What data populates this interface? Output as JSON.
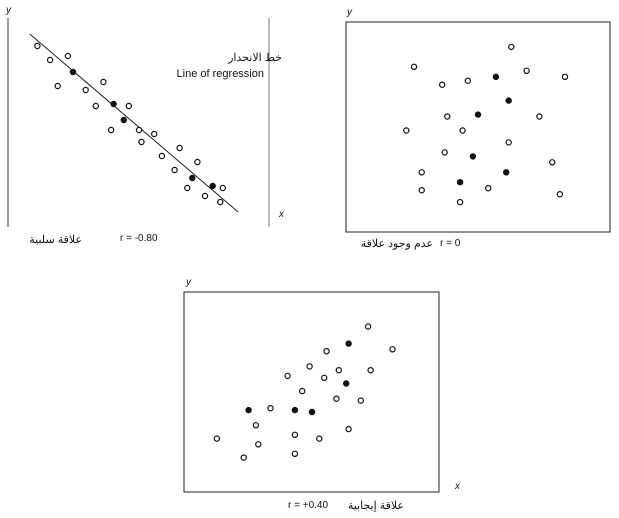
{
  "chart_data": [
    {
      "type": "scatter",
      "panel": "negative",
      "xlabel": "x",
      "ylabel": "y",
      "caption_r": "r = -0.80",
      "caption_ar": "علاقة سلبية",
      "annotation_ar": "خط الانحدار",
      "annotation_en": "Line of regression",
      "has_regression_line": true,
      "xlim": [
        0,
        10
      ],
      "ylim": [
        0,
        10
      ],
      "points": [
        {
          "x": 1.0,
          "y": 9.0,
          "filled": false
        },
        {
          "x": 1.5,
          "y": 8.3,
          "filled": false
        },
        {
          "x": 2.2,
          "y": 8.5,
          "filled": false
        },
        {
          "x": 2.4,
          "y": 7.7,
          "filled": true
        },
        {
          "x": 1.8,
          "y": 7.0,
          "filled": false
        },
        {
          "x": 2.9,
          "y": 6.8,
          "filled": false
        },
        {
          "x": 3.6,
          "y": 7.2,
          "filled": false
        },
        {
          "x": 3.3,
          "y": 6.0,
          "filled": false
        },
        {
          "x": 4.0,
          "y": 6.1,
          "filled": true
        },
        {
          "x": 4.6,
          "y": 6.0,
          "filled": false
        },
        {
          "x": 4.4,
          "y": 5.3,
          "filled": true
        },
        {
          "x": 3.9,
          "y": 4.8,
          "filled": false
        },
        {
          "x": 5.0,
          "y": 4.8,
          "filled": false
        },
        {
          "x": 5.6,
          "y": 4.6,
          "filled": false
        },
        {
          "x": 5.1,
          "y": 4.2,
          "filled": false
        },
        {
          "x": 5.9,
          "y": 3.5,
          "filled": false
        },
        {
          "x": 6.6,
          "y": 3.9,
          "filled": false
        },
        {
          "x": 7.3,
          "y": 3.2,
          "filled": false
        },
        {
          "x": 6.4,
          "y": 2.8,
          "filled": false
        },
        {
          "x": 7.1,
          "y": 2.4,
          "filled": true
        },
        {
          "x": 7.9,
          "y": 2.0,
          "filled": true
        },
        {
          "x": 6.9,
          "y": 1.9,
          "filled": false
        },
        {
          "x": 7.6,
          "y": 1.5,
          "filled": false
        },
        {
          "x": 8.2,
          "y": 1.2,
          "filled": false
        },
        {
          "x": 8.3,
          "y": 1.9,
          "filled": false
        }
      ],
      "regression": {
        "x1": 0.7,
        "y1": 9.6,
        "x2": 8.9,
        "y2": 0.7
      }
    },
    {
      "type": "scatter",
      "panel": "none",
      "xlabel": "x",
      "ylabel": "y",
      "caption_r": "r = 0",
      "caption_ar": "عدم وجود علاقة",
      "has_regression_line": false,
      "xlim": [
        0,
        10
      ],
      "ylim": [
        0,
        10
      ],
      "points": [
        {
          "x": 6.3,
          "y": 9.0,
          "filled": false
        },
        {
          "x": 2.5,
          "y": 8.0,
          "filled": false
        },
        {
          "x": 6.9,
          "y": 7.8,
          "filled": false
        },
        {
          "x": 8.4,
          "y": 7.5,
          "filled": false
        },
        {
          "x": 3.6,
          "y": 7.1,
          "filled": false
        },
        {
          "x": 4.6,
          "y": 7.3,
          "filled": false
        },
        {
          "x": 5.7,
          "y": 7.5,
          "filled": true
        },
        {
          "x": 6.2,
          "y": 6.3,
          "filled": true
        },
        {
          "x": 3.8,
          "y": 5.5,
          "filled": false
        },
        {
          "x": 5.0,
          "y": 5.6,
          "filled": true
        },
        {
          "x": 7.4,
          "y": 5.5,
          "filled": false
        },
        {
          "x": 2.2,
          "y": 4.8,
          "filled": false
        },
        {
          "x": 4.4,
          "y": 4.8,
          "filled": false
        },
        {
          "x": 6.2,
          "y": 4.2,
          "filled": false
        },
        {
          "x": 3.7,
          "y": 3.7,
          "filled": false
        },
        {
          "x": 4.8,
          "y": 3.5,
          "filled": true
        },
        {
          "x": 7.9,
          "y": 3.2,
          "filled": false
        },
        {
          "x": 2.8,
          "y": 2.7,
          "filled": false
        },
        {
          "x": 6.1,
          "y": 2.7,
          "filled": true
        },
        {
          "x": 4.3,
          "y": 2.2,
          "filled": true
        },
        {
          "x": 5.4,
          "y": 1.9,
          "filled": false
        },
        {
          "x": 2.8,
          "y": 1.8,
          "filled": false
        },
        {
          "x": 8.2,
          "y": 1.6,
          "filled": false
        },
        {
          "x": 4.3,
          "y": 1.2,
          "filled": false
        }
      ]
    },
    {
      "type": "scatter",
      "panel": "positive",
      "xlabel": "x",
      "ylabel": "y",
      "caption_r": "r = +0.40",
      "caption_ar": "علاقة إيجابية",
      "has_regression_line": false,
      "xlim": [
        0,
        10
      ],
      "ylim": [
        0,
        10
      ],
      "points": [
        {
          "x": 7.3,
          "y": 8.5,
          "filled": false
        },
        {
          "x": 6.5,
          "y": 7.6,
          "filled": true
        },
        {
          "x": 8.3,
          "y": 7.3,
          "filled": false
        },
        {
          "x": 5.6,
          "y": 7.2,
          "filled": false
        },
        {
          "x": 4.9,
          "y": 6.4,
          "filled": false
        },
        {
          "x": 6.1,
          "y": 6.2,
          "filled": false
        },
        {
          "x": 7.4,
          "y": 6.2,
          "filled": false
        },
        {
          "x": 4.0,
          "y": 5.9,
          "filled": false
        },
        {
          "x": 5.5,
          "y": 5.8,
          "filled": false
        },
        {
          "x": 6.4,
          "y": 5.5,
          "filled": true
        },
        {
          "x": 4.6,
          "y": 5.1,
          "filled": false
        },
        {
          "x": 6.0,
          "y": 4.7,
          "filled": false
        },
        {
          "x": 7.0,
          "y": 4.6,
          "filled": false
        },
        {
          "x": 3.3,
          "y": 4.2,
          "filled": false
        },
        {
          "x": 4.3,
          "y": 4.1,
          "filled": true
        },
        {
          "x": 5.0,
          "y": 4.0,
          "filled": true
        },
        {
          "x": 2.4,
          "y": 4.1,
          "filled": true
        },
        {
          "x": 2.7,
          "y": 3.3,
          "filled": false
        },
        {
          "x": 6.5,
          "y": 3.1,
          "filled": false
        },
        {
          "x": 4.3,
          "y": 2.8,
          "filled": false
        },
        {
          "x": 5.3,
          "y": 2.6,
          "filled": false
        },
        {
          "x": 1.1,
          "y": 2.6,
          "filled": false
        },
        {
          "x": 2.8,
          "y": 2.3,
          "filled": false
        },
        {
          "x": 4.3,
          "y": 1.8,
          "filled": false
        },
        {
          "x": 2.2,
          "y": 1.6,
          "filled": false
        }
      ]
    }
  ]
}
